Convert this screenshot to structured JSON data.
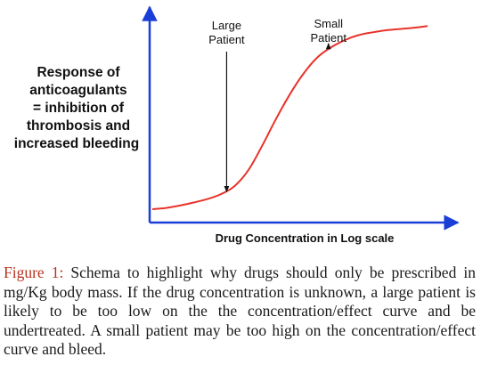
{
  "chart_data": {
    "type": "line",
    "title": "",
    "ylabel_lines": [
      {
        "text": "Response of",
        "color": "#111111"
      },
      {
        "text": "anticoagulants",
        "color": "#111111"
      },
      {
        "text": "= inhibition of",
        "color": "#111111"
      },
      {
        "text": "thrombosis and",
        "color": "#111111"
      },
      {
        "text": "increased bleeding",
        "color": "#e8332a"
      }
    ],
    "xlabel": "Drug Concentration in Log scale",
    "grid": false,
    "x_range": [
      0,
      100
    ],
    "y_range": [
      0,
      100
    ],
    "series": [
      {
        "color": "#e8332a",
        "x": [
          0,
          5,
          10,
          15,
          20,
          25,
          30,
          35,
          40,
          45,
          50,
          55,
          60,
          65,
          70,
          75,
          80,
          85,
          90,
          95,
          100
        ],
        "y": [
          0.0,
          0.7,
          2.0,
          3.6,
          5.5,
          8.2,
          12.7,
          21.4,
          34.7,
          49.2,
          62.4,
          73.7,
          82.4,
          87.9,
          91.8,
          94.5,
          96.0,
          97.1,
          97.8,
          98.5,
          99.4
        ]
      }
    ],
    "annotations": [
      {
        "id": "large",
        "lines": [
          "Large",
          "Patient"
        ],
        "x": 27,
        "y_tip": 8.0
      },
      {
        "id": "small",
        "lines": [
          "Small",
          "Patient"
        ],
        "x": 64,
        "y_tip": 88.5
      }
    ]
  },
  "caption": {
    "label": "Figure 1:",
    "text": " Schema to highlight why drugs should only be prescribed in mg/Kg body mass. If the drug concentration is unknown, a large patient is likely to be too low on the the concentration/effect curve and be undertreated. A small patient may be too high on the concentration/effect curve and bleed."
  },
  "colors": {
    "axis": "#1a3fd6",
    "curve": "#e8332a",
    "text": "#111111",
    "caption_label": "#b8321f"
  }
}
